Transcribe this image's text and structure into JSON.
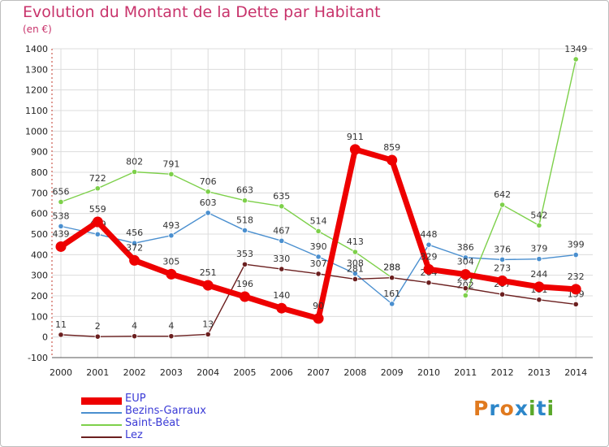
{
  "header": {
    "title": "Evolution du Montant de la Dette par Habitant",
    "subtitle": "(en €)"
  },
  "logo": {
    "text": "Proxiti",
    "colors": [
      "#e07a1f",
      "#2c86c9",
      "#e07a1f",
      "#2c86c9",
      "#5aa82a",
      "#2c86c9",
      "#5aa82a"
    ]
  },
  "chart_data": {
    "type": "line",
    "title": "Evolution du Montant de la Dette par Habitant",
    "subtitle": "(en €)",
    "xlabel": "",
    "ylabel": "",
    "x": [
      "2000",
      "2001",
      "2002",
      "2003",
      "2004",
      "2005",
      "2006",
      "2007",
      "2008",
      "2009",
      "2010",
      "2011",
      "2012",
      "2013",
      "2014"
    ],
    "y_ticks": [
      -100,
      0,
      100,
      200,
      300,
      400,
      500,
      600,
      700,
      800,
      900,
      1000,
      1100,
      1200,
      1300,
      1400
    ],
    "ylim": [
      -100,
      1400
    ],
    "grid": true,
    "legend_position": "bottom-left",
    "series": [
      {
        "name": "EUP",
        "color": "#ee0000",
        "values": [
          439,
          559,
          372,
          305,
          251,
          196,
          140,
          90,
          911,
          859,
          329,
          304,
          273,
          244,
          232
        ],
        "labels": [
          "439",
          "559",
          "372",
          "305",
          "251",
          "196",
          "140",
          "90",
          "911",
          "859",
          "329",
          "304",
          "273",
          "244",
          "232"
        ]
      },
      {
        "name": "Bezins-Garraux",
        "color": "#4a8fcf",
        "values": [
          538,
          499,
          456,
          493,
          603,
          518,
          467,
          390,
          308,
          161,
          448,
          386,
          376,
          379,
          399
        ],
        "labels": [
          "538",
          "499",
          "456",
          "493",
          "603",
          "518",
          "467",
          "390",
          "308",
          "161",
          "448",
          "386",
          "376",
          "379",
          "399"
        ]
      },
      {
        "name": "Saint-Béat",
        "color": "#7dd04a",
        "values": [
          656,
          722,
          802,
          791,
          706,
          663,
          635,
          514,
          413,
          288,
          null,
          202,
          642,
          542,
          1349
        ],
        "labels": [
          "656",
          "722",
          "802",
          "791",
          "706",
          "663",
          "635",
          "514",
          "413",
          "288",
          "",
          "202",
          "642",
          "542",
          "1349"
        ]
      },
      {
        "name": "Lez",
        "color": "#6b1f1f",
        "values": [
          11,
          2,
          4,
          4,
          13,
          353,
          330,
          307,
          281,
          288,
          264,
          237,
          207,
          181,
          159
        ],
        "labels": [
          "11",
          "2",
          "4",
          "4",
          "13",
          "353",
          "330",
          "307",
          "281",
          "288",
          "264",
          "237",
          "207",
          "181",
          "159"
        ]
      }
    ]
  }
}
